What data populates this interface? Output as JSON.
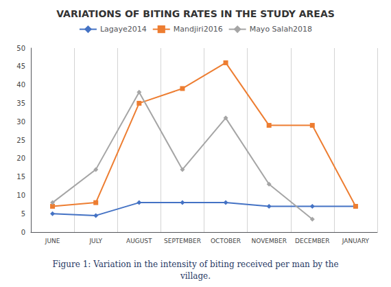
{
  "chart_data": {
    "type": "line",
    "title": "VARIATIONS OF BITING RATES IN THE STUDY AREAS",
    "categories": [
      "JUNE",
      "JULY",
      "AUGUST",
      "SEPTEMBER",
      "OCTOBER",
      "NOVEMBER",
      "DECEMBER",
      "JANUARY"
    ],
    "series": [
      {
        "name": "Lagaye2014",
        "color": "#4472C4",
        "marker": "diamond",
        "values": [
          5,
          4.5,
          8,
          8,
          8,
          7,
          7,
          7
        ]
      },
      {
        "name": "Mandjiri2016",
        "color": "#ED7D31",
        "marker": "square",
        "values": [
          7,
          8,
          35,
          39,
          46,
          29,
          29,
          7
        ]
      },
      {
        "name": "Mayo Salah2018",
        "color": "#A5A5A5",
        "marker": "diamond",
        "values": [
          8,
          17,
          38,
          17,
          31,
          13,
          3.5,
          null
        ]
      }
    ],
    "ylim": [
      0,
      50
    ],
    "yticks": [
      0,
      5,
      10,
      15,
      20,
      25,
      30,
      35,
      40,
      45,
      50
    ],
    "grid": "x",
    "legend": "top",
    "annotations": [
      "Figure 1: Variation in the intensity of biting received per man by the\nvillage."
    ]
  }
}
